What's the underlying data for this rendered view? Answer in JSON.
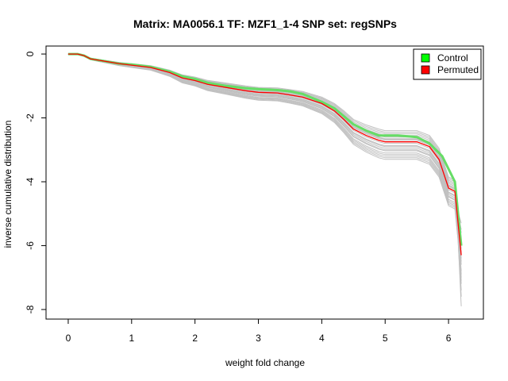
{
  "chart_data": {
    "type": "line",
    "title": "Matrix: MA0056.1 TF: MZF1_1-4 SNP set: regSNPs",
    "xlabel": "weight fold change",
    "ylabel": "inverse cumulative distribution",
    "xlim": [
      -0.35,
      6.55
    ],
    "ylim": [
      -8.3,
      0.25
    ],
    "xticks": [
      0,
      1,
      2,
      3,
      4,
      5,
      6
    ],
    "yticks": [
      0,
      -2,
      -4,
      -6,
      -8
    ],
    "xtick_labels": [
      "0",
      "1",
      "2",
      "3",
      "4",
      "5",
      "6"
    ],
    "ytick_labels": [
      "0",
      "-2",
      "-4",
      "-6",
      "-8"
    ],
    "legend": {
      "position": "top-right",
      "entries": [
        {
          "label": "Control",
          "color": "#00ff00"
        },
        {
          "label": "Permuted",
          "color": "#ff0000"
        }
      ]
    },
    "series": [
      {
        "name": "Control",
        "color": "#66dd66",
        "x": [
          0,
          0.15,
          0.25,
          0.35,
          0.5,
          0.8,
          1.0,
          1.3,
          1.6,
          1.8,
          2.0,
          2.2,
          2.5,
          2.8,
          3.0,
          3.3,
          3.5,
          3.7,
          4.0,
          4.2,
          4.35,
          4.5,
          4.7,
          4.9,
          5.0,
          5.2,
          5.5,
          5.7,
          5.9,
          6.05,
          6.1,
          6.15,
          6.2
        ],
        "y": [
          0,
          0,
          -0.05,
          -0.15,
          -0.2,
          -0.3,
          -0.33,
          -0.4,
          -0.55,
          -0.7,
          -0.78,
          -0.9,
          -1.0,
          -1.07,
          -1.1,
          -1.13,
          -1.17,
          -1.25,
          -1.5,
          -1.7,
          -1.95,
          -2.2,
          -2.4,
          -2.55,
          -2.55,
          -2.55,
          -2.6,
          -2.8,
          -3.2,
          -3.8,
          -4.0,
          -5.0,
          -6.0
        ]
      },
      {
        "name": "Permuted",
        "color": "#ff0000",
        "x": [
          0,
          0.15,
          0.25,
          0.35,
          0.5,
          0.8,
          1.0,
          1.3,
          1.6,
          1.8,
          2.0,
          2.2,
          2.5,
          2.8,
          3.0,
          3.3,
          3.5,
          3.7,
          4.0,
          4.2,
          4.35,
          4.5,
          4.7,
          4.9,
          5.0,
          5.2,
          5.5,
          5.7,
          5.85,
          6.0,
          6.1,
          6.15,
          6.2
        ],
        "y": [
          0,
          0,
          -0.05,
          -0.15,
          -0.2,
          -0.3,
          -0.35,
          -0.42,
          -0.58,
          -0.75,
          -0.83,
          -0.95,
          -1.05,
          -1.15,
          -1.2,
          -1.22,
          -1.28,
          -1.35,
          -1.55,
          -1.78,
          -2.05,
          -2.35,
          -2.55,
          -2.7,
          -2.75,
          -2.75,
          -2.75,
          -2.9,
          -3.3,
          -4.2,
          -4.3,
          -5.3,
          -6.3
        ]
      }
    ],
    "background_lines": {
      "color": "#c0c0c0",
      "x": [
        0,
        0.15,
        0.25,
        0.35,
        0.5,
        0.8,
        1.0,
        1.3,
        1.6,
        1.8,
        2.0,
        2.2,
        2.5,
        2.8,
        3.0,
        3.3,
        3.5,
        3.7,
        4.0,
        4.2,
        4.35,
        4.5,
        4.7,
        4.9,
        5.0,
        5.2,
        5.5,
        5.7,
        5.85,
        6.0,
        6.1,
        6.15,
        6.2
      ],
      "base_y": [
        0,
        0,
        -0.05,
        -0.15,
        -0.2,
        -0.3,
        -0.35,
        -0.42,
        -0.58,
        -0.75,
        -0.83,
        -0.95,
        -1.05,
        -1.15,
        -1.2,
        -1.22,
        -1.28,
        -1.35,
        -1.55,
        -1.78,
        -2.05,
        -2.35,
        -2.55,
        -2.7,
        -2.75,
        -2.75,
        -2.75,
        -2.9,
        -3.3,
        -4.2,
        -4.3,
        -5.3,
        -6.3
      ],
      "offsets": [
        0.35,
        0.25,
        0.15,
        0.08,
        0.0,
        -0.05,
        -0.12,
        -0.2,
        -0.28,
        -0.35,
        -0.45,
        -0.55,
        0.2,
        0.1,
        -0.15,
        -0.4,
        0.3,
        -0.25,
        -0.5,
        0.05
      ],
      "tail_ends": [
        -5.3,
        -5.6,
        -5.9,
        -6.1,
        -6.2,
        -6.4,
        -6.6,
        -6.8,
        -7.0,
        -7.2,
        -7.4,
        -7.6,
        -5.8,
        -6.0,
        -6.5,
        -7.1,
        -5.5,
        -6.9,
        -7.9,
        -6.3
      ]
    }
  }
}
